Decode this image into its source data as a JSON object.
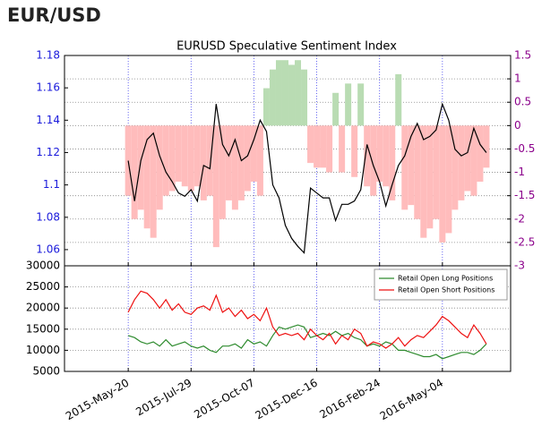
{
  "header": "EUR/USD",
  "chart_data": [
    {
      "type": "line",
      "title": "EURUSD Speculative Sentiment Index",
      "x": [
        "2015-May-20",
        "2015-May-27",
        "2015-Jun-03",
        "2015-Jun-10",
        "2015-Jun-17",
        "2015-Jun-24",
        "2015-Jul-01",
        "2015-Jul-08",
        "2015-Jul-15",
        "2015-Jul-22",
        "2015-Jul-29",
        "2015-Aug-05",
        "2015-Aug-12",
        "2015-Aug-19",
        "2015-Aug-26",
        "2015-Sep-02",
        "2015-Sep-09",
        "2015-Sep-16",
        "2015-Sep-23",
        "2015-Sep-30",
        "2015-Oct-07",
        "2015-Oct-14",
        "2015-Oct-21",
        "2015-Oct-28",
        "2015-Nov-04",
        "2015-Nov-11",
        "2015-Nov-18",
        "2015-Nov-25",
        "2015-Dec-02",
        "2015-Dec-09",
        "2015-Dec-16",
        "2015-Dec-23",
        "2015-Dec-30",
        "2016-Jan-06",
        "2016-Jan-13",
        "2016-Jan-20",
        "2016-Jan-27",
        "2016-Feb-03",
        "2016-Feb-10",
        "2016-Feb-17",
        "2016-Feb-24",
        "2016-Mar-02",
        "2016-Mar-09",
        "2016-Mar-16",
        "2016-Mar-23",
        "2016-Mar-30",
        "2016-Apr-06",
        "2016-Apr-13",
        "2016-Apr-20",
        "2016-Apr-27",
        "2016-May-04",
        "2016-May-11",
        "2016-May-18",
        "2016-May-25",
        "2016-Jun-01",
        "2016-Jun-08",
        "2016-Jun-15",
        "2016-Jun-22"
      ],
      "xlim": [
        "2015-Mar-10",
        "2016-Jul-19"
      ],
      "xticks": [
        "2015-May-20",
        "2015-Jul-29",
        "2015-Oct-07",
        "2015-Dec-16",
        "2016-Feb-24",
        "2016-May-04"
      ],
      "ylim": [
        1.05,
        1.18
      ],
      "yticks": [
        1.06,
        1.08,
        1.1,
        1.12,
        1.14,
        1.16,
        1.18
      ],
      "y2lim": [
        -3.0,
        1.5
      ],
      "y2ticks": [
        -3.0,
        -2.5,
        -2.0,
        -1.5,
        -1.0,
        -0.5,
        0.0,
        0.5,
        1.0,
        1.5
      ],
      "grid": true,
      "series": [
        {
          "type": "bar",
          "axis": "y2",
          "color": "#ffbcbc",
          "positive_color": "#b9dcb3",
          "values": [
            -1.5,
            -2.0,
            -1.8,
            -2.2,
            -2.4,
            -1.8,
            -1.5,
            -1.4,
            -1.2,
            -1.3,
            -1.4,
            -1.3,
            -1.6,
            -1.5,
            -2.6,
            -2.0,
            -1.6,
            -1.8,
            -1.6,
            -1.4,
            -1.2,
            -1.5,
            0.8,
            1.2,
            1.4,
            1.4,
            1.3,
            1.4,
            1.2,
            -0.8,
            -0.9,
            -0.9,
            -1.0,
            0.7,
            -1.0,
            0.9,
            -1.1,
            0.9,
            -1.3,
            -1.5,
            -1.2,
            -1.3,
            -1.6,
            1.1,
            -1.8,
            -1.7,
            -2.0,
            -2.4,
            -2.2,
            -2.0,
            -2.5,
            -2.3,
            -1.8,
            -1.6,
            -1.4,
            -1.5,
            -1.2,
            -0.9
          ]
        },
        {
          "type": "line",
          "color": "#000000",
          "values": [
            1.115,
            1.09,
            1.115,
            1.128,
            1.132,
            1.118,
            1.108,
            1.102,
            1.095,
            1.093,
            1.097,
            1.09,
            1.112,
            1.11,
            1.15,
            1.125,
            1.118,
            1.128,
            1.115,
            1.118,
            1.128,
            1.14,
            1.133,
            1.1,
            1.092,
            1.075,
            1.067,
            1.062,
            1.058,
            1.098,
            1.095,
            1.092,
            1.092,
            1.078,
            1.088,
            1.088,
            1.09,
            1.097,
            1.125,
            1.112,
            1.102,
            1.087,
            1.1,
            1.112,
            1.118,
            1.13,
            1.138,
            1.128,
            1.13,
            1.134,
            1.15,
            1.14,
            1.122,
            1.118,
            1.12,
            1.135,
            1.125,
            1.12
          ]
        }
      ]
    },
    {
      "type": "line",
      "x": [
        "2015-May-20",
        "2015-May-27",
        "2015-Jun-03",
        "2015-Jun-10",
        "2015-Jun-17",
        "2015-Jun-24",
        "2015-Jul-01",
        "2015-Jul-08",
        "2015-Jul-15",
        "2015-Jul-22",
        "2015-Jul-29",
        "2015-Aug-05",
        "2015-Aug-12",
        "2015-Aug-19",
        "2015-Aug-26",
        "2015-Sep-02",
        "2015-Sep-09",
        "2015-Sep-16",
        "2015-Sep-23",
        "2015-Sep-30",
        "2015-Oct-07",
        "2015-Oct-14",
        "2015-Oct-21",
        "2015-Oct-28",
        "2015-Nov-04",
        "2015-Nov-11",
        "2015-Nov-18",
        "2015-Nov-25",
        "2015-Dec-02",
        "2015-Dec-09",
        "2015-Dec-16",
        "2015-Dec-23",
        "2015-Dec-30",
        "2016-Jan-06",
        "2016-Jan-13",
        "2016-Jan-20",
        "2016-Jan-27",
        "2016-Feb-03",
        "2016-Feb-10",
        "2016-Feb-17",
        "2016-Feb-24",
        "2016-Mar-02",
        "2016-Mar-09",
        "2016-Mar-16",
        "2016-Mar-23",
        "2016-Mar-30",
        "2016-Apr-06",
        "2016-Apr-13",
        "2016-Apr-20",
        "2016-Apr-27",
        "2016-May-04",
        "2016-May-11",
        "2016-May-18",
        "2016-May-25",
        "2016-Jun-01",
        "2016-Jun-08",
        "2016-Jun-15",
        "2016-Jun-22"
      ],
      "xlim": [
        "2015-Mar-10",
        "2016-Jul-19"
      ],
      "xticks": [
        "2015-May-20",
        "2015-Jul-29",
        "2015-Oct-07",
        "2015-Dec-16",
        "2016-Feb-24",
        "2016-May-04"
      ],
      "ylim": [
        5000,
        30000
      ],
      "yticks": [
        5000,
        10000,
        15000,
        20000,
        25000,
        30000
      ],
      "grid": true,
      "legend": "upper right",
      "series": [
        {
          "name": "Retail Open Long Positions",
          "color": "#2e8b2e",
          "values": [
            13500,
            13000,
            12000,
            11500,
            12000,
            11000,
            12500,
            11000,
            11500,
            12000,
            11000,
            10500,
            11000,
            10000,
            9500,
            11000,
            11000,
            11500,
            10500,
            12500,
            11500,
            12000,
            11000,
            13500,
            15500,
            15000,
            15500,
            16000,
            15500,
            13000,
            13500,
            14000,
            13500,
            14500,
            13500,
            14000,
            13000,
            12500,
            11000,
            11500,
            11000,
            12000,
            11500,
            10000,
            10000,
            9500,
            9000,
            8500,
            8500,
            9000,
            8000,
            8500,
            9000,
            9500,
            9500,
            9000,
            10000,
            11500
          ]
        },
        {
          "name": "Retail Open Short Positions",
          "color": "#ee1111",
          "values": [
            19000,
            22000,
            24000,
            23500,
            22000,
            20000,
            22000,
            19500,
            21000,
            19000,
            18500,
            20000,
            20500,
            19500,
            23000,
            19000,
            20000,
            18000,
            19500,
            17500,
            18500,
            17000,
            20000,
            15500,
            13500,
            14000,
            13500,
            14000,
            12500,
            15000,
            13500,
            12500,
            14000,
            11500,
            13500,
            12500,
            15000,
            14000,
            11000,
            12000,
            11500,
            10500,
            11500,
            13000,
            11000,
            12500,
            13500,
            13000,
            14500,
            16000,
            18000,
            17000,
            15500,
            14000,
            13000,
            16000,
            14000,
            11500
          ]
        }
      ]
    }
  ]
}
